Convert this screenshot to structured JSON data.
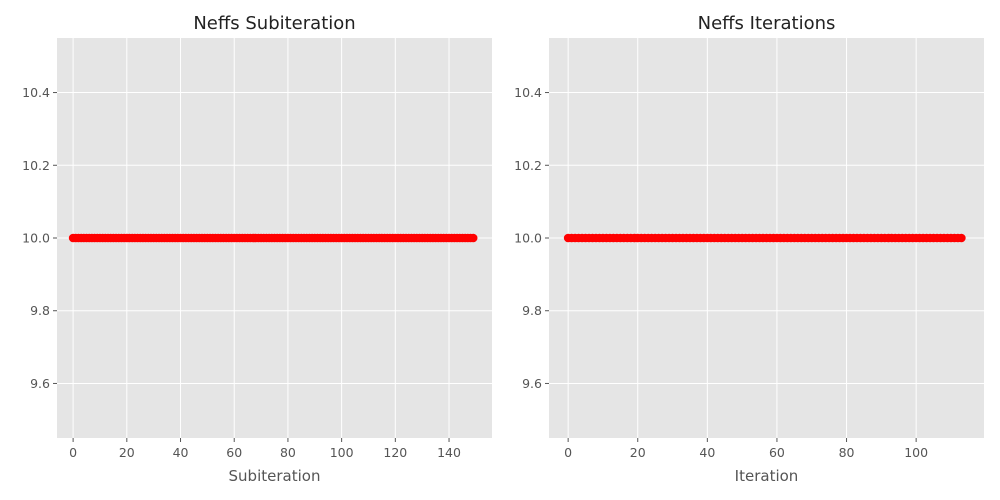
{
  "chart_data": [
    {
      "type": "scatter",
      "title": "Neffs Subiteration",
      "xlabel": "Subiteration",
      "ylabel": "",
      "xlim": [
        -6,
        156
      ],
      "ylim": [
        9.45,
        10.55
      ],
      "xticks": [
        0,
        20,
        40,
        60,
        80,
        100,
        120,
        140
      ],
      "yticks": [
        9.6,
        9.8,
        10.0,
        10.2,
        10.4
      ],
      "ytick_labels": [
        "9.6",
        "9.8",
        "10.0",
        "10.2",
        "10.4"
      ],
      "grid": true,
      "color": "#ff0000",
      "series": [
        {
          "x_start": 0,
          "x_end": 149,
          "x_step": 1,
          "y": 10.0
        }
      ]
    },
    {
      "type": "scatter",
      "title": "Neffs Iterations",
      "xlabel": "Iteration",
      "ylabel": "",
      "xlim": [
        -5.5,
        119.5
      ],
      "ylim": [
        9.45,
        10.55
      ],
      "xticks": [
        0,
        20,
        40,
        60,
        80,
        100
      ],
      "yticks": [
        9.6,
        9.8,
        10.0,
        10.2,
        10.4
      ],
      "ytick_labels": [
        "9.6",
        "9.8",
        "10.0",
        "10.2",
        "10.4"
      ],
      "grid": true,
      "color": "#ff0000",
      "series": [
        {
          "x_start": 0,
          "x_end": 113,
          "x_step": 1,
          "y": 10.0
        }
      ]
    }
  ]
}
